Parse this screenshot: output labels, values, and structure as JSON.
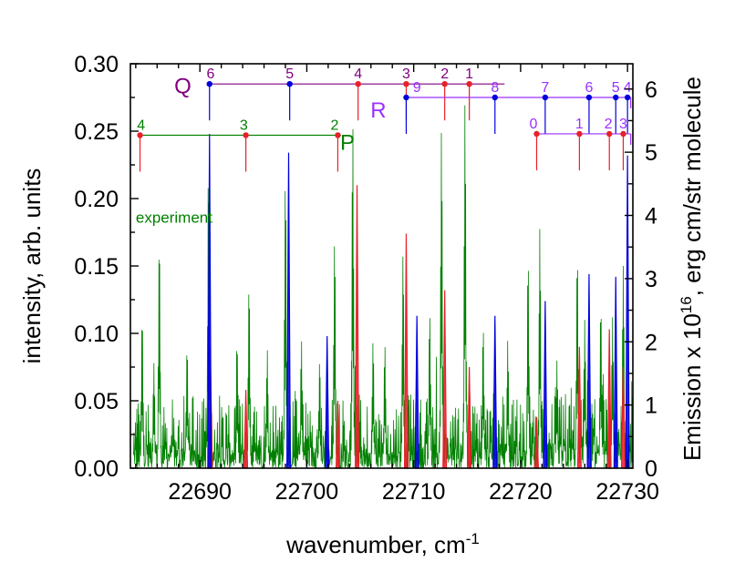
{
  "chart_data": {
    "type": "line",
    "xlabel": "wavenumber, cm",
    "xlabel_sup": "-1",
    "ylabel_left": "intensity, arb. units",
    "ylabel_right_pre": "Emission x 10",
    "ylabel_right_sup": "16",
    "ylabel_right_post": ", erg cm/str molecule",
    "xlim": [
      22683.5,
      22730.5
    ],
    "ylim_left": [
      0.0,
      0.3
    ],
    "ylim_right": [
      0,
      6.4
    ],
    "x_ticks": [
      "22690",
      "22700",
      "22710",
      "22720",
      "22730"
    ],
    "y_left_ticks": [
      "0.00",
      "0.05",
      "0.10",
      "0.15",
      "0.20",
      "0.25",
      "0.30"
    ],
    "y_right_ticks": [
      "0",
      "1",
      "2",
      "3",
      "4",
      "5",
      "6"
    ],
    "grid": false,
    "annotations": [
      {
        "text": "experiment",
        "x": 22684.0,
        "y": 0.182,
        "color": "#008000"
      }
    ],
    "colors": {
      "experiment": "#008000",
      "red_lines": "#e8202a",
      "blue_lines": "#0000dd"
    },
    "red_lines": [
      {
        "x": 22691.0,
        "y": 0.074
      },
      {
        "x": 22694.3,
        "y": 0.058
      },
      {
        "x": 22702.9,
        "y": 0.05
      },
      {
        "x": 22704.7,
        "y": 0.21
      },
      {
        "x": 22709.3,
        "y": 0.174
      },
      {
        "x": 22712.9,
        "y": 0.132
      },
      {
        "x": 22715.2,
        "y": 0.075
      },
      {
        "x": 22721.5,
        "y": 0.038
      },
      {
        "x": 22725.5,
        "y": 0.09
      },
      {
        "x": 22728.3,
        "y": 0.103
      },
      {
        "x": 22729.6,
        "y": 0.075
      }
    ],
    "blue_lines": [
      {
        "x": 22690.9,
        "y": 0.248
      },
      {
        "x": 22698.3,
        "y": 0.234
      },
      {
        "x": 22701.9,
        "y": 0.098
      },
      {
        "x": 22710.3,
        "y": 0.113
      },
      {
        "x": 22717.6,
        "y": 0.113
      },
      {
        "x": 22722.3,
        "y": 0.124
      },
      {
        "x": 22726.4,
        "y": 0.144
      },
      {
        "x": 22728.9,
        "y": 0.142
      },
      {
        "x": 22730.0,
        "y": 0.232
      }
    ],
    "experiment_peaks": [
      {
        "x": 22684.6,
        "y": 0.112
      },
      {
        "x": 22685.7,
        "y": 0.078
      },
      {
        "x": 22686.2,
        "y": 0.168
      },
      {
        "x": 22688.8,
        "y": 0.09
      },
      {
        "x": 22690.8,
        "y": 0.222
      },
      {
        "x": 22693.5,
        "y": 0.085
      },
      {
        "x": 22694.6,
        "y": 0.136
      },
      {
        "x": 22696.3,
        "y": 0.088
      },
      {
        "x": 22698.0,
        "y": 0.215
      },
      {
        "x": 22699.5,
        "y": 0.095
      },
      {
        "x": 22701.2,
        "y": 0.08
      },
      {
        "x": 22702.6,
        "y": 0.17
      },
      {
        "x": 22704.3,
        "y": 0.256
      },
      {
        "x": 22706.2,
        "y": 0.095
      },
      {
        "x": 22707.3,
        "y": 0.092
      },
      {
        "x": 22709.0,
        "y": 0.16
      },
      {
        "x": 22711.5,
        "y": 0.115
      },
      {
        "x": 22712.6,
        "y": 0.252
      },
      {
        "x": 22714.8,
        "y": 0.272
      },
      {
        "x": 22716.5,
        "y": 0.105
      },
      {
        "x": 22718.8,
        "y": 0.095
      },
      {
        "x": 22720.7,
        "y": 0.155
      },
      {
        "x": 22721.8,
        "y": 0.178
      },
      {
        "x": 22723.4,
        "y": 0.08
      },
      {
        "x": 22725.3,
        "y": 0.158
      },
      {
        "x": 22726.0,
        "y": 0.11
      },
      {
        "x": 22727.5,
        "y": 0.12
      },
      {
        "x": 22728.6,
        "y": 0.112
      },
      {
        "x": 22729.6,
        "y": 0.15
      }
    ],
    "branches": [
      {
        "name": "P",
        "color": "#008000",
        "marker_color": "#e8202a",
        "y": 0.247,
        "bar_end_x": 22703.2,
        "labels": [
          {
            "text": "4",
            "x": 22684.5,
            "marker_x": 22684.4
          },
          {
            "text": "3",
            "x": 22694.1,
            "marker_x": 22694.3
          },
          {
            "text": "2",
            "x": 22702.6,
            "marker_x": 22702.9
          }
        ]
      },
      {
        "name": "Q",
        "color": "#800080",
        "marker_color": "#e8202a",
        "y": 0.285,
        "bar_end_x": 22718.5,
        "labels": [
          {
            "text": "6",
            "x": 22691.0,
            "marker_x": 22690.9,
            "marker_color": "#0000dd"
          },
          {
            "text": "5",
            "x": 22698.4,
            "marker_x": 22698.4,
            "marker_color": "#0000dd"
          },
          {
            "text": "4",
            "x": 22704.8,
            "marker_x": 22704.8
          },
          {
            "text": "3",
            "x": 22709.3,
            "marker_x": 22709.3
          },
          {
            "text": "2",
            "x": 22712.9,
            "marker_x": 22712.9
          },
          {
            "text": "1",
            "x": 22715.2,
            "marker_x": 22715.2
          }
        ]
      },
      {
        "name": "R",
        "color": "#9b30ff",
        "marker_color": "#0000dd",
        "y": 0.275,
        "bar_end_x": 22730.3,
        "labels": [
          {
            "text": "9",
            "x": 22710.3,
            "marker_x": 22709.3
          },
          {
            "text": "8",
            "x": 22717.6,
            "marker_x": 22717.6
          },
          {
            "text": "7",
            "x": 22722.3,
            "marker_x": 22722.3
          },
          {
            "text": "6",
            "x": 22726.4,
            "marker_x": 22726.4
          },
          {
            "text": "5",
            "x": 22728.9,
            "marker_x": 22728.9
          },
          {
            "text": "4",
            "x": 22730.0,
            "marker_x": 22730.0
          }
        ]
      },
      {
        "name": "",
        "color": "#9b30ff",
        "marker_color": "#e8202a",
        "y": 0.248,
        "bar_end_x": 22730.3,
        "labels": [
          {
            "text": "0",
            "x": 22721.2,
            "marker_x": 22721.5
          },
          {
            "text": "1",
            "x": 22725.5,
            "marker_x": 22725.5
          },
          {
            "text": "2",
            "x": 22728.2,
            "marker_x": 22728.3
          },
          {
            "text": "3",
            "x": 22729.6,
            "marker_x": 22729.6
          }
        ]
      }
    ],
    "branch_label_positions": {
      "P": {
        "x": 22703.8,
        "y": 0.236
      },
      "Q": {
        "x": 22688.4,
        "y": 0.278
      },
      "R": {
        "x": 22706.7,
        "y": 0.26
      }
    }
  }
}
